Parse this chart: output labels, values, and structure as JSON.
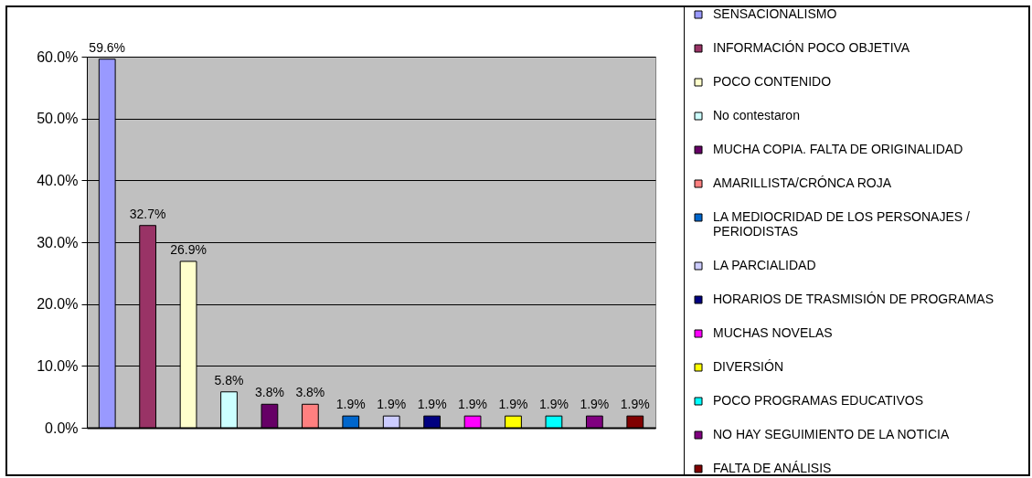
{
  "chart_data": {
    "type": "bar",
    "categories": [
      null,
      null,
      null,
      null,
      null,
      null,
      null,
      null,
      null,
      null,
      null,
      null,
      null,
      null
    ],
    "series": [
      {
        "name": "SENSACIONALISMO",
        "color": "#9999ff",
        "values": [
          59.6,
          null,
          null,
          null,
          null,
          null,
          null,
          null,
          null,
          null,
          null,
          null,
          null,
          null
        ],
        "value_labels": [
          "59.6%",
          null,
          null,
          null,
          null,
          null,
          null,
          null,
          null,
          null,
          null,
          null,
          null,
          null
        ]
      },
      {
        "name": "INFORMACIÓN POCO OBJETIVA",
        "color": "#993366",
        "values": [
          null,
          32.7,
          null,
          null,
          null,
          null,
          null,
          null,
          null,
          null,
          null,
          null,
          null,
          null
        ],
        "value_labels": [
          null,
          "32.7%",
          null,
          null,
          null,
          null,
          null,
          null,
          null,
          null,
          null,
          null,
          null,
          null
        ]
      },
      {
        "name": "POCO CONTENIDO",
        "color": "#ffffcc",
        "values": [
          null,
          null,
          26.9,
          null,
          null,
          null,
          null,
          null,
          null,
          null,
          null,
          null,
          null,
          null
        ],
        "value_labels": [
          null,
          null,
          "26.9%",
          null,
          null,
          null,
          null,
          null,
          null,
          null,
          null,
          null,
          null,
          null
        ]
      },
      {
        "name": "No contestaron",
        "color": "#ccffff",
        "values": [
          null,
          null,
          null,
          5.8,
          null,
          null,
          null,
          null,
          null,
          null,
          null,
          null,
          null,
          null
        ],
        "value_labels": [
          null,
          null,
          null,
          "5.8%",
          null,
          null,
          null,
          null,
          null,
          null,
          null,
          null,
          null,
          null
        ]
      },
      {
        "name": "MUCHA COPIA. FALTA DE ORIGINALIDAD",
        "color": "#660066",
        "values": [
          null,
          null,
          null,
          null,
          3.8,
          null,
          null,
          null,
          null,
          null,
          null,
          null,
          null,
          null
        ],
        "value_labels": [
          null,
          null,
          null,
          null,
          "3.8%",
          null,
          null,
          null,
          null,
          null,
          null,
          null,
          null,
          null
        ]
      },
      {
        "name": "AMARILLISTA/CRÓNCA ROJA",
        "color": "#ff8080",
        "values": [
          null,
          null,
          null,
          null,
          null,
          3.8,
          null,
          null,
          null,
          null,
          null,
          null,
          null,
          null
        ],
        "value_labels": [
          null,
          null,
          null,
          null,
          null,
          "3.8%",
          null,
          null,
          null,
          null,
          null,
          null,
          null,
          null
        ]
      },
      {
        "name": "LA MEDIOCRIDAD DE LOS PERSONAJES / PERIODISTAS",
        "color": "#0066cc",
        "values": [
          null,
          null,
          null,
          null,
          null,
          null,
          1.9,
          null,
          null,
          null,
          null,
          null,
          null,
          null
        ],
        "value_labels": [
          null,
          null,
          null,
          null,
          null,
          null,
          "1.9%",
          null,
          null,
          null,
          null,
          null,
          null,
          null
        ]
      },
      {
        "name": "LA PARCIALIDAD",
        "color": "#ccccff",
        "values": [
          null,
          null,
          null,
          null,
          null,
          null,
          null,
          1.9,
          null,
          null,
          null,
          null,
          null,
          null
        ],
        "value_labels": [
          null,
          null,
          null,
          null,
          null,
          null,
          null,
          "1.9%",
          null,
          null,
          null,
          null,
          null,
          null
        ]
      },
      {
        "name": "HORARIOS DE TRASMISIÓN DE PROGRAMAS",
        "color": "#000080",
        "values": [
          null,
          null,
          null,
          null,
          null,
          null,
          null,
          null,
          1.9,
          null,
          null,
          null,
          null,
          null
        ],
        "value_labels": [
          null,
          null,
          null,
          null,
          null,
          null,
          null,
          null,
          "1.9%",
          null,
          null,
          null,
          null,
          null
        ]
      },
      {
        "name": "MUCHAS NOVELAS",
        "color": "#ff00ff",
        "values": [
          null,
          null,
          null,
          null,
          null,
          null,
          null,
          null,
          null,
          1.9,
          null,
          null,
          null,
          null
        ],
        "value_labels": [
          null,
          null,
          null,
          null,
          null,
          null,
          null,
          null,
          null,
          "1.9%",
          null,
          null,
          null,
          null
        ]
      },
      {
        "name": "DIVERSIÓN",
        "color": "#ffff00",
        "values": [
          null,
          null,
          null,
          null,
          null,
          null,
          null,
          null,
          null,
          null,
          1.9,
          null,
          null,
          null
        ],
        "value_labels": [
          null,
          null,
          null,
          null,
          null,
          null,
          null,
          null,
          null,
          null,
          "1.9%",
          null,
          null,
          null
        ]
      },
      {
        "name": "POCO PROGRAMAS EDUCATIVOS",
        "color": "#00ffff",
        "values": [
          null,
          null,
          null,
          null,
          null,
          null,
          null,
          null,
          null,
          null,
          null,
          1.9,
          null,
          null
        ],
        "value_labels": [
          null,
          null,
          null,
          null,
          null,
          null,
          null,
          null,
          null,
          null,
          null,
          "1.9%",
          null,
          null
        ]
      },
      {
        "name": "NO HAY SEGUIMIENTO DE LA NOTICIA",
        "color": "#800080",
        "values": [
          null,
          null,
          null,
          null,
          null,
          null,
          null,
          null,
          null,
          null,
          null,
          null,
          1.9,
          null
        ],
        "value_labels": [
          null,
          null,
          null,
          null,
          null,
          null,
          null,
          null,
          null,
          null,
          null,
          null,
          "1.9%",
          null
        ]
      },
      {
        "name": "FALTA DE ANÁLISIS",
        "color": "#800000",
        "values": [
          null,
          null,
          null,
          null,
          null,
          null,
          null,
          null,
          null,
          null,
          null,
          null,
          null,
          1.9
        ],
        "value_labels": [
          null,
          null,
          null,
          null,
          null,
          null,
          null,
          null,
          null,
          null,
          null,
          null,
          null,
          "1.9%"
        ]
      }
    ],
    "ylim": [
      0,
      60
    ],
    "yticks": [
      {
        "value": 0,
        "label": "0.0%"
      },
      {
        "value": 10,
        "label": "10.0%"
      },
      {
        "value": 20,
        "label": "20.0%"
      },
      {
        "value": 30,
        "label": "30.0%"
      },
      {
        "value": 40,
        "label": "40.0%"
      },
      {
        "value": 50,
        "label": "50.0%"
      },
      {
        "value": 60,
        "label": "60.0%"
      }
    ],
    "grid": "y",
    "legend": "right",
    "tick_labels": "y"
  }
}
